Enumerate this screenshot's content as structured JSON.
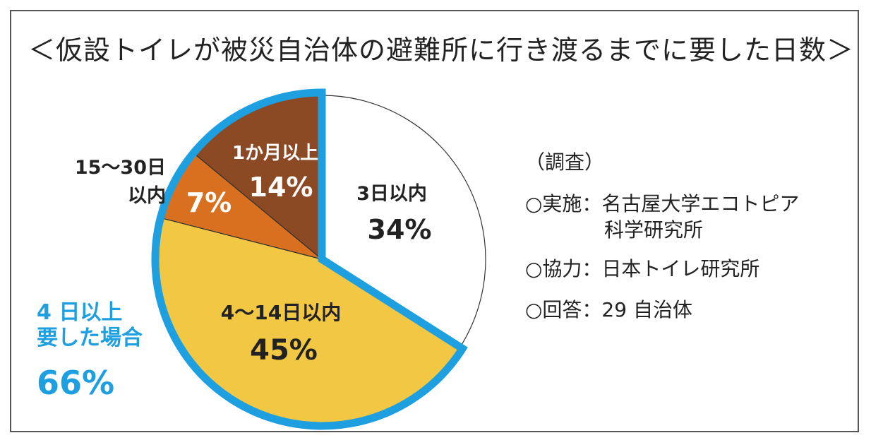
{
  "title": "＜仮設トイレが被災自治体の避難所に行き渡るまでに要した日数＞",
  "chart_data": {
    "type": "pie",
    "slices": [
      {
        "label": "3日以内",
        "value": 34,
        "display": "34%",
        "color": "#ffffff"
      },
      {
        "label": "4〜14日以内",
        "value": 45,
        "display": "45%",
        "color": "#f2c744"
      },
      {
        "label": "15〜30日以内",
        "value": 7,
        "display": "7%",
        "color": "#d9701f"
      },
      {
        "label": "1か月以上",
        "value": 14,
        "display": "14%",
        "color": "#8b4a24"
      }
    ],
    "highlight": {
      "line1": "4 日以上",
      "line2": "要した場合",
      "value": "66%",
      "color": "#1e9fe0"
    }
  },
  "outside_label": {
    "line1": "15～30日",
    "line2": "以内"
  },
  "info": {
    "heading": "（調査）",
    "implementer": "○実施：名古屋大学エコトピア",
    "implementer_sub": "科学研究所",
    "cooperation": "○協力：日本トイレ研究所",
    "respondents": "○回答：29 自治体"
  }
}
